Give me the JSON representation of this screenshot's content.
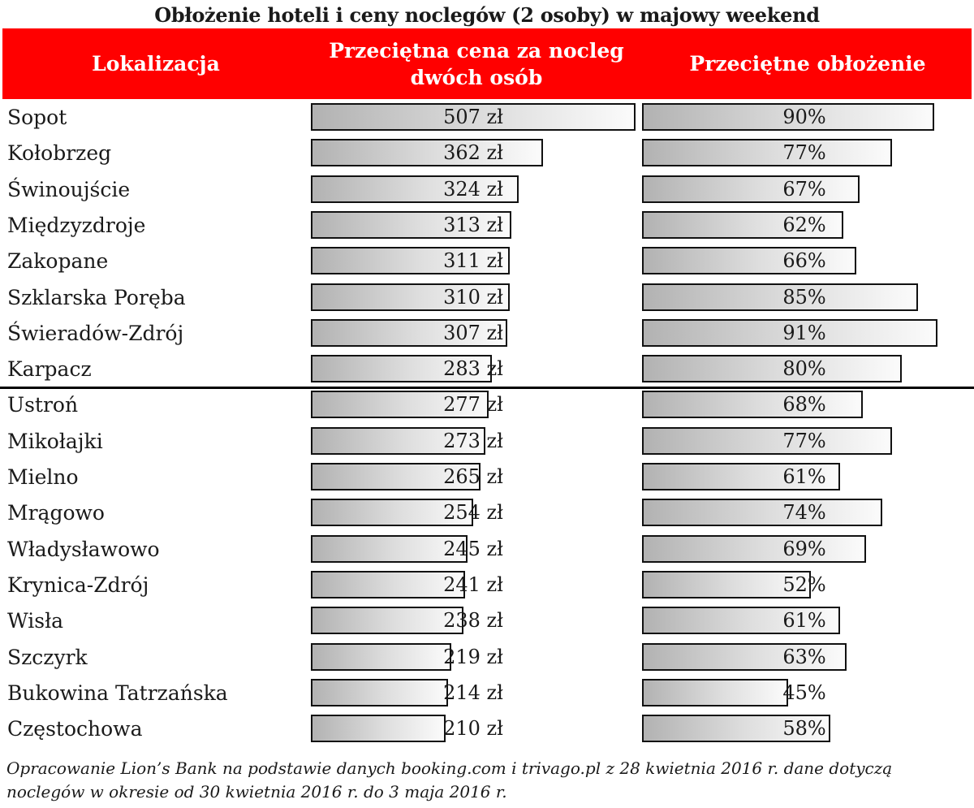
{
  "title": "Obłożenie hoteli i ceny noclegów (2 osoby) w majowy weekend",
  "colors": {
    "header_bg": "#ff0000",
    "header_text": "#ffffff",
    "bar_border": "#111111"
  },
  "chart_data": {
    "type": "table",
    "title": "Obłożenie hoteli i ceny noclegów (2 osoby) w majowy weekend",
    "columns": [
      "Lokalizacja",
      "Przeciętna cena za nocleg dwóch osób",
      "Przeciętne obłożenie"
    ],
    "price_max": 507,
    "occupancy_max": 100,
    "rows": [
      {
        "location": "Sopot",
        "price": 507,
        "price_label": "507 zł",
        "occupancy": 90,
        "occupancy_label": "90%"
      },
      {
        "location": "Kołobrzeg",
        "price": 362,
        "price_label": "362 zł",
        "occupancy": 77,
        "occupancy_label": "77%"
      },
      {
        "location": "Świnoujście",
        "price": 324,
        "price_label": "324 zł",
        "occupancy": 67,
        "occupancy_label": "67%"
      },
      {
        "location": "Międzyzdroje",
        "price": 313,
        "price_label": "313 zł",
        "occupancy": 62,
        "occupancy_label": "62%"
      },
      {
        "location": "Zakopane",
        "price": 311,
        "price_label": "311 zł",
        "occupancy": 66,
        "occupancy_label": "66%"
      },
      {
        "location": "Szklarska Poręba",
        "price": 310,
        "price_label": "310 zł",
        "occupancy": 85,
        "occupancy_label": "85%"
      },
      {
        "location": "Świeradów-Zdrój",
        "price": 307,
        "price_label": "307 zł",
        "occupancy": 91,
        "occupancy_label": "91%"
      },
      {
        "location": "Karpacz",
        "price": 283,
        "price_label": "283 zł",
        "occupancy": 80,
        "occupancy_label": "80%"
      },
      {
        "location": "Ustroń",
        "price": 277,
        "price_label": "277 zł",
        "occupancy": 68,
        "occupancy_label": "68%"
      },
      {
        "location": "Mikołajki",
        "price": 273,
        "price_label": "273 zł",
        "occupancy": 77,
        "occupancy_label": "77%"
      },
      {
        "location": "Mielno",
        "price": 265,
        "price_label": "265 zł",
        "occupancy": 61,
        "occupancy_label": "61%"
      },
      {
        "location": "Mrągowo",
        "price": 254,
        "price_label": "254 zł",
        "occupancy": 74,
        "occupancy_label": "74%"
      },
      {
        "location": "Władysławowo",
        "price": 245,
        "price_label": "245 zł",
        "occupancy": 69,
        "occupancy_label": "69%"
      },
      {
        "location": "Krynica-Zdrój",
        "price": 241,
        "price_label": "241 zł",
        "occupancy": 52,
        "occupancy_label": "52%"
      },
      {
        "location": "Wisła",
        "price": 238,
        "price_label": "238 zł",
        "occupancy": 61,
        "occupancy_label": "61%"
      },
      {
        "location": "Szczyrk",
        "price": 219,
        "price_label": "219 zł",
        "occupancy": 63,
        "occupancy_label": "63%"
      },
      {
        "location": "Bukowina Tatrzańska",
        "price": 214,
        "price_label": "214 zł",
        "occupancy": 45,
        "occupancy_label": "45%"
      },
      {
        "location": "Częstochowa",
        "price": 210,
        "price_label": "210 zł",
        "occupancy": 58,
        "occupancy_label": "58%"
      }
    ]
  },
  "footnote": "Opracowanie Lion’s Bank na podstawie danych booking.com i trivago.pl z 28 kwietnia 2016 r. dane dotyczą noclegów w okresie od 30 kwietnia 2016 r. do 3 maja 2016 r."
}
